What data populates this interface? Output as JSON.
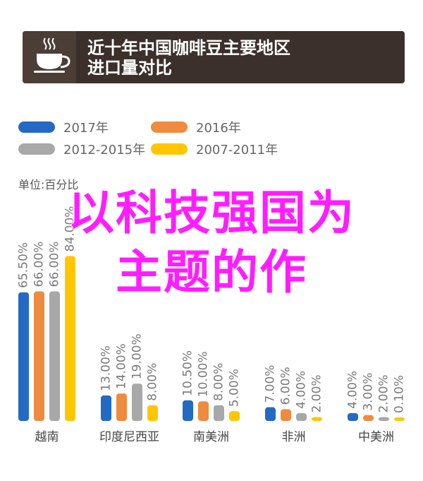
{
  "header": {
    "title_line1": "近十年中国咖啡豆主要地区",
    "title_line2": "进口量对比"
  },
  "icons": {
    "header_icon": "coffee-cup-icon"
  },
  "unit_label": "单位:百分比",
  "overlay": {
    "line1": "以科技强国为",
    "line2": "主题的作"
  },
  "chart_data": {
    "type": "bar",
    "categories": [
      "越南",
      "印度尼西亚",
      "南美洲",
      "非洲",
      "中美洲"
    ],
    "series": [
      {
        "name": "2017年",
        "color": "#2469c4",
        "values": [
          65.5,
          13.0,
          10.5,
          7.0,
          4.0
        ],
        "labels": [
          "65.50%",
          "13.00%",
          "10.50%",
          "7.00%",
          "4.00%"
        ]
      },
      {
        "name": "2016年",
        "color": "#ef8b3e",
        "values": [
          66.0,
          14.0,
          10.0,
          6.0,
          3.0
        ],
        "labels": [
          "66.00%",
          "14.00%",
          "10.00%",
          "6.00%",
          "3.00%"
        ]
      },
      {
        "name": "2012-2015年",
        "color": "#a8a8a8",
        "values": [
          66.0,
          19.0,
          8.0,
          4.0,
          2.0
        ],
        "labels": [
          "66.00%",
          "19.00%",
          "8.00%",
          "4.00%",
          "2.00%"
        ]
      },
      {
        "name": "2007-2011年",
        "color": "#ffc600",
        "values": [
          84.0,
          8.0,
          5.0,
          2.0,
          0.1
        ],
        "labels": [
          "84.00%",
          "8.00%",
          "5.00%",
          "2.00%",
          "0.10%"
        ]
      }
    ],
    "ylim": [
      0,
      90
    ],
    "legend_position": "top-left"
  }
}
